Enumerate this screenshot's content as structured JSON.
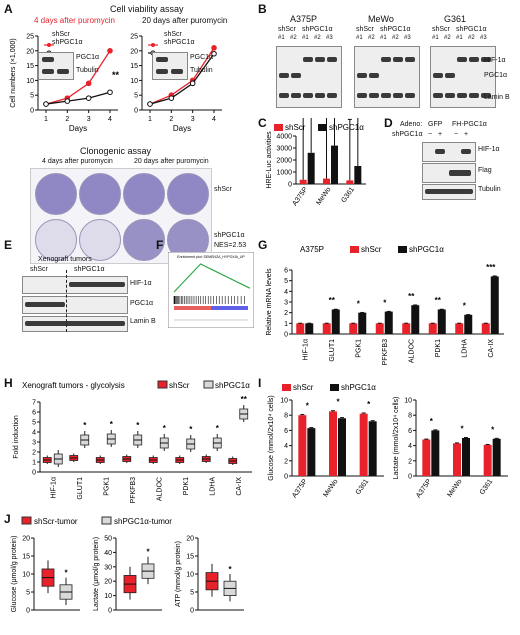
{
  "panels": {
    "A": {
      "letter": "A",
      "title": "Cell viability assay",
      "sub_left": "4 days after puromycin",
      "sub_right": "20 days after puromycin",
      "legend": [
        "shScr",
        "shPGC1α"
      ],
      "blot_labels": [
        "PGC1α",
        "Tubulin"
      ],
      "sig": "**",
      "clono_title": "Clonogenic  assay",
      "clono_left": "4 days after puromycin",
      "clono_right": "20 days after puromycin",
      "clono_rows": [
        "shScr",
        "shPGC1α"
      ]
    },
    "B": {
      "letter": "B",
      "lines": [
        "A375P",
        "MeWo",
        "G361"
      ],
      "groups": [
        "shScr",
        "shPGC1α"
      ],
      "lanes": [
        "#1",
        "#2",
        "#1",
        "#2",
        "#3"
      ],
      "labels": [
        "HIF-1α",
        "PGC1α",
        "Lamin B"
      ]
    },
    "C": {
      "letter": "C"
    },
    "D": {
      "letter": "D",
      "adeno": "Adeno:",
      "cols": [
        "GFP",
        "FH-PGC1α"
      ],
      "sh": "shPGC1α",
      "signs": [
        "−",
        "+",
        "−",
        "+"
      ],
      "labels": [
        "HIF-1α",
        "Flag",
        "Tubulin"
      ]
    },
    "E": {
      "letter": "E",
      "title": "Xenograft tumors",
      "groups": [
        "shScr",
        "shPGC1α"
      ],
      "labels": [
        "HIF-1α",
        "PGC1α",
        "Lamin B"
      ]
    },
    "F": {
      "letter": "F",
      "nes": "NES=2.53",
      "gsea_title": "Enrichment plot: SEMENZA_HYPOXIA_UP"
    },
    "G": {
      "letter": "G"
    },
    "H": {
      "letter": "H"
    },
    "I": {
      "letter": "I"
    },
    "J": {
      "letter": "J"
    }
  },
  "colors": {
    "red": "#e8222a",
    "black": "#111111",
    "grey": "#d9d9d9",
    "purple": "#8f88c4"
  },
  "chart_data": [
    {
      "id": "A-left",
      "type": "line",
      "x": [
        1,
        2,
        3,
        4
      ],
      "xlabel": "Days",
      "ylabel": "Cell numbers (×1,000)",
      "ylim": [
        0,
        25
      ],
      "yticks": [
        0,
        5,
        10,
        15,
        20,
        25
      ],
      "series": [
        {
          "name": "shScr",
          "values": [
            2,
            4,
            9,
            20
          ]
        },
        {
          "name": "shPGC1α",
          "values": [
            2,
            3,
            4,
            6
          ]
        }
      ]
    },
    {
      "id": "A-right",
      "type": "line",
      "x": [
        1,
        2,
        3,
        4
      ],
      "xlabel": "Days",
      "ylim": [
        0,
        25
      ],
      "yticks": [
        0,
        5,
        10,
        15,
        20,
        25
      ],
      "series": [
        {
          "name": "shScr",
          "values": [
            2,
            5,
            10,
            21
          ]
        },
        {
          "name": "shPGC1α",
          "values": [
            2,
            4,
            9,
            19
          ]
        }
      ]
    },
    {
      "id": "C",
      "type": "bar",
      "categories": [
        "A375P",
        "MeWo",
        "G361"
      ],
      "ylabel": "HRE-Luc activities",
      "ylim": [
        0,
        4000
      ],
      "yticks": [
        0,
        1000,
        2000,
        3000,
        4000
      ],
      "series": [
        {
          "name": "shScr",
          "values": [
            350,
            450,
            300
          ]
        },
        {
          "name": "shPGC1α",
          "values": [
            2600,
            3200,
            1500
          ]
        }
      ],
      "sig": [
        "***",
        "***",
        "**"
      ]
    },
    {
      "id": "G",
      "type": "bar",
      "title": "A375P",
      "categories": [
        "HIF-1α",
        "GLUT1",
        "PGK1",
        "PFKFB3",
        "ALDOC",
        "PDK1",
        "LDHA",
        "CA-IX"
      ],
      "ylabel": "Relative mRNA levels",
      "ylim": [
        0,
        6
      ],
      "yticks": [
        0,
        1,
        2,
        3,
        4,
        5,
        6
      ],
      "series": [
        {
          "name": "shScr",
          "values": [
            1,
            1,
            1,
            1,
            1,
            1,
            1,
            1
          ]
        },
        {
          "name": "shPGC1α",
          "values": [
            1.0,
            2.3,
            2.0,
            2.1,
            2.7,
            2.3,
            1.8,
            5.4
          ]
        }
      ],
      "sig": [
        "",
        "**",
        "*",
        "*",
        "**",
        "**",
        "*",
        "***"
      ]
    },
    {
      "id": "H",
      "type": "box",
      "title": "Xenograft tumors - glycolysis",
      "categories": [
        "HIF-1α",
        "GLUT1",
        "PGK1",
        "PFKFB3",
        "ALDOC",
        "PDK1",
        "LDHA",
        "CA-IX"
      ],
      "ylabel": "Fold induction",
      "ylim": [
        0,
        7
      ],
      "yticks": [
        0,
        1,
        2,
        3,
        4,
        5,
        6,
        7
      ],
      "series": [
        {
          "name": "shScr",
          "values": [
            1.2,
            1.4,
            1.2,
            1.3,
            1.2,
            1.2,
            1.3,
            1.1
          ]
        },
        {
          "name": "shPGC1α",
          "values": [
            1.3,
            3.2,
            3.3,
            3.2,
            2.9,
            2.8,
            2.9,
            5.8
          ]
        }
      ],
      "sig": [
        "",
        "*",
        "*",
        "*",
        "*",
        "*",
        "*",
        "**"
      ]
    },
    {
      "id": "I-left",
      "type": "bar",
      "categories": [
        "A375P",
        "MeWo",
        "G361"
      ],
      "ylabel": "Glucose (mmol/2x10⁴ cells)",
      "ylim": [
        0,
        10
      ],
      "yticks": [
        0,
        2,
        4,
        6,
        8,
        10
      ],
      "series": [
        {
          "name": "shScr",
          "values": [
            8.0,
            8.5,
            8.2
          ]
        },
        {
          "name": "shPGC1α",
          "values": [
            6.3,
            7.6,
            7.2
          ]
        }
      ],
      "sig": [
        "*",
        "*",
        "*"
      ]
    },
    {
      "id": "I-right",
      "type": "bar",
      "categories": [
        "A375P",
        "MeWo",
        "G361"
      ],
      "ylabel": "Lactate (mmol/2x10⁴ cells)",
      "ylim": [
        0,
        10
      ],
      "yticks": [
        0,
        2,
        4,
        6,
        8,
        10
      ],
      "series": [
        {
          "name": "shScr",
          "values": [
            4.8,
            4.3,
            4.1
          ]
        },
        {
          "name": "shPGC1α",
          "values": [
            6.0,
            5.0,
            4.9
          ]
        }
      ],
      "sig": [
        "*",
        "*",
        "*"
      ]
    },
    {
      "id": "J-glu",
      "type": "box",
      "ylabel": "Glucose (μmol/g protein)",
      "ylim": [
        0,
        20
      ],
      "yticks": [
        0,
        5,
        10,
        15,
        20
      ],
      "series": [
        {
          "name": "shScr-tumor",
          "values": [
            9
          ]
        },
        {
          "name": "shPGC1α-tumor",
          "values": [
            5
          ]
        }
      ],
      "sig": "*"
    },
    {
      "id": "J-lac",
      "type": "box",
      "ylabel": "Lactate (μmol/g protein)",
      "ylim": [
        0,
        50
      ],
      "yticks": [
        0,
        10,
        20,
        30,
        40,
        50
      ],
      "series": [
        {
          "name": "shScr-tumor",
          "values": [
            18
          ]
        },
        {
          "name": "shPGC1α-tumor",
          "values": [
            27
          ]
        }
      ],
      "sig": "*"
    },
    {
      "id": "J-atp",
      "type": "box",
      "ylabel": "ATP (mmol/g protein)",
      "ylim": [
        0,
        20
      ],
      "yticks": [
        0,
        5,
        10,
        15,
        20
      ],
      "series": [
        {
          "name": "shScr-tumor",
          "values": [
            8
          ]
        },
        {
          "name": "shPGC1α-tumor",
          "values": [
            6
          ]
        }
      ],
      "sig": "*"
    }
  ]
}
